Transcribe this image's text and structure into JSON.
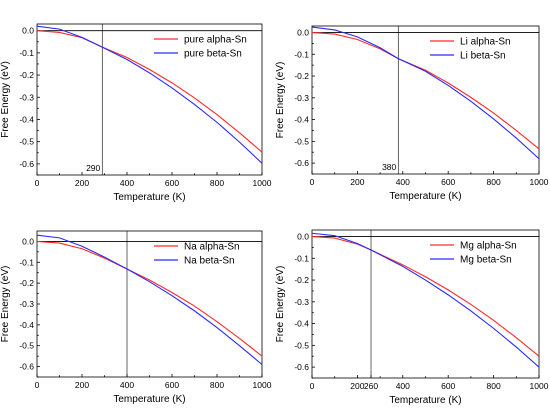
{
  "colors": {
    "alpha": "#ff2a2a",
    "beta": "#2a2aff"
  },
  "chart_data": [
    {
      "type": "line",
      "xlabel": "Temperature (K)",
      "ylabel": "Free Energy (eV)",
      "xlim": [
        0,
        1000
      ],
      "ylim": [
        -0.65,
        0.03
      ],
      "xticks": [
        0,
        200,
        400,
        600,
        800,
        1000
      ],
      "yticks": [
        0,
        -0.1,
        -0.2,
        -0.3,
        -0.4,
        -0.5,
        -0.6
      ],
      "ytick_labels": [
        "0.0",
        "-0.1",
        "-0.2",
        "-0.3",
        "-0.4",
        "-0.5",
        "-0.6"
      ],
      "reference_lines": [
        {
          "axis": "y",
          "value": 0
        },
        {
          "axis": "x",
          "value": 290
        }
      ],
      "annotation": {
        "text": "290",
        "x": 290
      },
      "legend": "top-right",
      "series": [
        {
          "name": "pure alpha-Sn",
          "color": "#ff2a2a",
          "x": [
            0,
            100,
            200,
            290,
            400,
            500,
            600,
            700,
            800,
            900,
            1000
          ],
          "values": [
            0.0,
            -0.008,
            -0.032,
            -0.074,
            -0.121,
            -0.175,
            -0.235,
            -0.303,
            -0.378,
            -0.46,
            -0.547
          ]
        },
        {
          "name": "pure beta-Sn",
          "color": "#2a2aff",
          "x": [
            0,
            100,
            200,
            290,
            400,
            500,
            600,
            700,
            800,
            900,
            1000
          ],
          "values": [
            0.02,
            0.007,
            -0.03,
            -0.074,
            -0.13,
            -0.19,
            -0.258,
            -0.332,
            -0.413,
            -0.502,
            -0.597
          ]
        }
      ]
    },
    {
      "type": "line",
      "xlabel": "Temperature (K)",
      "ylabel": "Free Energy (eV)",
      "xlim": [
        0,
        1000
      ],
      "ylim": [
        -0.65,
        0.03
      ],
      "xticks": [
        0,
        200,
        400,
        600,
        800,
        1000
      ],
      "yticks": [
        0,
        -0.1,
        -0.2,
        -0.3,
        -0.4,
        -0.5,
        -0.6
      ],
      "ytick_labels": [
        "0.0",
        "-0.1",
        "-0.2",
        "-0.3",
        "-0.4",
        "-0.5",
        "-0.6"
      ],
      "reference_lines": [
        {
          "axis": "y",
          "value": 0
        },
        {
          "axis": "x",
          "value": 380
        }
      ],
      "annotation": {
        "text": "380",
        "x": 380
      },
      "legend": "top-right",
      "series": [
        {
          "name": "Li alpha-Sn",
          "color": "#ff2a2a",
          "x": [
            0,
            100,
            200,
            300,
            380,
            500,
            600,
            700,
            800,
            900,
            1000
          ],
          "values": [
            0.0,
            -0.007,
            -0.032,
            -0.075,
            -0.12,
            -0.173,
            -0.232,
            -0.298,
            -0.37,
            -0.45,
            -0.535
          ]
        },
        {
          "name": "Li beta-Sn",
          "color": "#2a2aff",
          "x": [
            0,
            100,
            200,
            300,
            380,
            500,
            600,
            700,
            800,
            900,
            1000
          ],
          "values": [
            0.025,
            0.012,
            -0.02,
            -0.07,
            -0.12,
            -0.178,
            -0.243,
            -0.316,
            -0.397,
            -0.485,
            -0.58
          ]
        }
      ]
    },
    {
      "type": "line",
      "xlabel": "Temperature (K)",
      "ylabel": "Free Energy (eV)",
      "xlim": [
        0,
        1000
      ],
      "ylim": [
        -0.65,
        0.05
      ],
      "xticks": [
        0,
        200,
        400,
        600,
        800,
        1000
      ],
      "yticks": [
        0,
        -0.1,
        -0.2,
        -0.3,
        -0.4,
        -0.5,
        -0.6
      ],
      "ytick_labels": [
        "0.0",
        "-0.1",
        "-0.2",
        "-0.3",
        "-0.4",
        "-0.5",
        "-0.6"
      ],
      "reference_lines": [
        {
          "axis": "y",
          "value": 0
        },
        {
          "axis": "x",
          "value": 400
        }
      ],
      "legend": "top-right",
      "series": [
        {
          "name": "Na alpha-Sn",
          "color": "#ff2a2a",
          "x": [
            0,
            100,
            200,
            300,
            400,
            500,
            600,
            700,
            800,
            900,
            1000
          ],
          "values": [
            0.0,
            -0.008,
            -0.035,
            -0.08,
            -0.132,
            -0.185,
            -0.245,
            -0.31,
            -0.385,
            -0.465,
            -0.55
          ]
        },
        {
          "name": "Na beta-Sn",
          "color": "#2a2aff",
          "x": [
            0,
            100,
            200,
            300,
            400,
            500,
            600,
            700,
            800,
            900,
            1000
          ],
          "values": [
            0.03,
            0.017,
            -0.023,
            -0.075,
            -0.132,
            -0.193,
            -0.26,
            -0.333,
            -0.413,
            -0.5,
            -0.59
          ]
        }
      ]
    },
    {
      "type": "line",
      "xlabel": "Temperature (K)",
      "ylabel": "Free Energy (eV)",
      "xlim": [
        0,
        1000
      ],
      "ylim": [
        -0.65,
        0.03
      ],
      "xticks": [
        0,
        200,
        260,
        400,
        600,
        800,
        1000
      ],
      "xtick_labels": [
        "0",
        "200",
        "260",
        "400",
        "600",
        "800",
        "1000"
      ],
      "yticks": [
        0,
        -0.1,
        -0.2,
        -0.3,
        -0.4,
        -0.5,
        -0.6
      ],
      "ytick_labels": [
        "0.0",
        "-0.1",
        "-0.2",
        "-0.3",
        "-0.4",
        "-0.5",
        "-0.6"
      ],
      "reference_lines": [
        {
          "axis": "y",
          "value": 0
        },
        {
          "axis": "x",
          "value": 260
        }
      ],
      "legend": "top-right",
      "series": [
        {
          "name": "Mg alpha-Sn",
          "color": "#ff2a2a",
          "x": [
            0,
            100,
            200,
            260,
            400,
            500,
            600,
            700,
            800,
            900,
            1000
          ],
          "values": [
            0.0,
            -0.007,
            -0.035,
            -0.062,
            -0.13,
            -0.185,
            -0.245,
            -0.312,
            -0.385,
            -0.465,
            -0.55
          ]
        },
        {
          "name": "Mg beta-Sn",
          "color": "#2a2aff",
          "x": [
            0,
            100,
            200,
            260,
            400,
            500,
            600,
            700,
            800,
            900,
            1000
          ],
          "values": [
            0.015,
            0.004,
            -0.032,
            -0.062,
            -0.137,
            -0.2,
            -0.268,
            -0.342,
            -0.422,
            -0.508,
            -0.6
          ]
        }
      ]
    }
  ]
}
